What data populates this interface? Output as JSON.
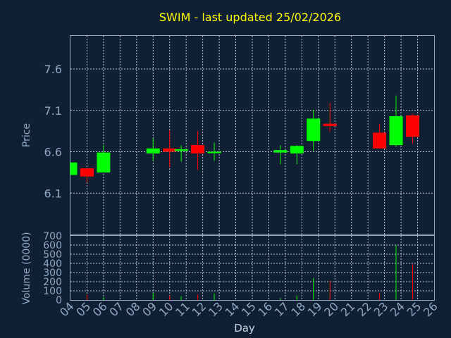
{
  "chart_data": {
    "type": "candlestick",
    "title": "SWIM - last updated 25/02/2026",
    "xlabel": "Day",
    "price_panel": {
      "ylabel": "Price",
      "ylim": [
        5.6,
        8.0
      ],
      "yticks": [
        "6.1",
        "6.6",
        "7.1",
        "7.6"
      ]
    },
    "volume_panel": {
      "ylabel": "Volume (0000)",
      "ylim": [
        0,
        700
      ],
      "yticks": [
        "0",
        "100",
        "200",
        "300",
        "400",
        "500",
        "600",
        "700"
      ]
    },
    "x_ticks": [
      "04",
      "05",
      "06",
      "07",
      "08",
      "09",
      "10",
      "11",
      "12",
      "13",
      "14",
      "15",
      "16",
      "17",
      "18",
      "19",
      "20",
      "21",
      "22",
      "23",
      "24",
      "25",
      "26"
    ],
    "grid": true,
    "colors": {
      "up": "#00ff00",
      "down": "#ff0000",
      "title": "#ffff00",
      "axis_text": "#8fa9c4",
      "background": "#0f2034"
    },
    "candles": [
      {
        "day": 4.0,
        "open": 6.32,
        "high": 6.47,
        "low": 6.32,
        "close": 6.47,
        "volume": 0
      },
      {
        "day": 5.0,
        "open": 6.4,
        "high": 6.4,
        "low": 6.23,
        "close": 6.3,
        "volume": 60
      },
      {
        "day": 6.0,
        "open": 6.35,
        "high": 6.68,
        "low": 6.35,
        "close": 6.59,
        "volume": 30
      },
      {
        "day": 9.0,
        "open": 6.58,
        "high": 6.76,
        "low": 6.49,
        "close": 6.64,
        "volume": 80
      },
      {
        "day": 10.0,
        "open": 6.64,
        "high": 6.86,
        "low": 6.41,
        "close": 6.6,
        "volume": 50
      },
      {
        "day": 10.7,
        "open": 6.61,
        "high": 6.68,
        "low": 6.48,
        "close": 6.63,
        "volume": 40
      },
      {
        "day": 11.7,
        "open": 6.68,
        "high": 6.85,
        "low": 6.38,
        "close": 6.58,
        "volume": 60
      },
      {
        "day": 12.7,
        "open": 6.59,
        "high": 6.71,
        "low": 6.49,
        "close": 6.6,
        "volume": 70
      },
      {
        "day": 16.7,
        "open": 6.59,
        "high": 6.68,
        "low": 6.45,
        "close": 6.62,
        "volume": 20
      },
      {
        "day": 17.7,
        "open": 6.58,
        "high": 6.68,
        "low": 6.45,
        "close": 6.67,
        "volume": 50
      },
      {
        "day": 18.7,
        "open": 6.73,
        "high": 7.11,
        "low": 6.61,
        "close": 7.0,
        "volume": 240
      },
      {
        "day": 19.7,
        "open": 6.94,
        "high": 7.19,
        "low": 6.84,
        "close": 6.91,
        "volume": 210
      },
      {
        "day": 22.7,
        "open": 6.83,
        "high": 6.94,
        "low": 6.64,
        "close": 6.64,
        "volume": 80
      },
      {
        "day": 23.7,
        "open": 6.68,
        "high": 7.28,
        "low": 6.66,
        "close": 7.03,
        "volume": 600
      },
      {
        "day": 24.7,
        "open": 7.04,
        "high": 7.06,
        "low": 6.7,
        "close": 6.78,
        "volume": 390
      }
    ]
  }
}
